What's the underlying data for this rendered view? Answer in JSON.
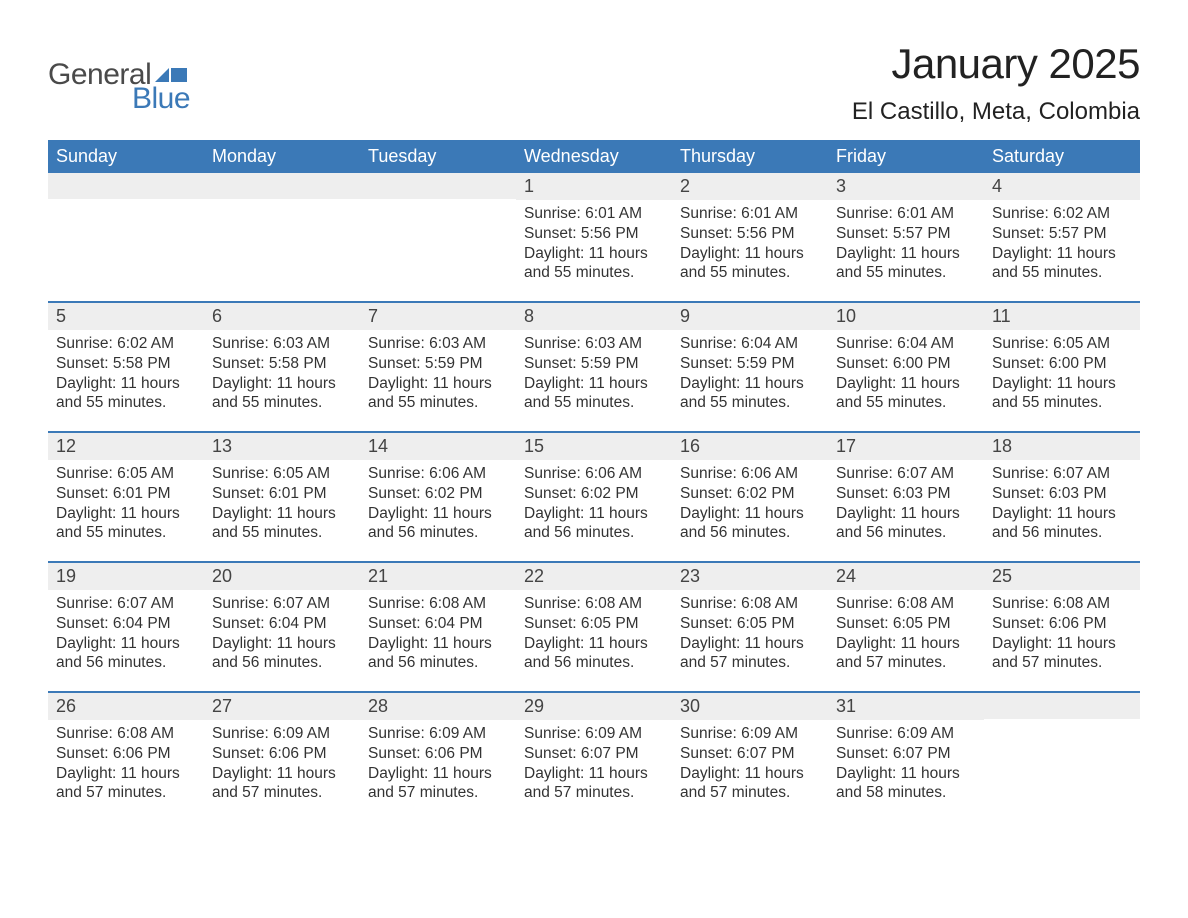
{
  "logo": {
    "text1": "General",
    "text2": "Blue",
    "flag_color": "#3b79b7"
  },
  "header": {
    "month_title": "January 2025",
    "location": "El Castillo, Meta, Colombia"
  },
  "colors": {
    "header_bg": "#3b79b7",
    "header_text": "#ffffff",
    "daynum_bg": "#eeeeee",
    "body_bg": "#ffffff",
    "text": "#333333"
  },
  "calendar": {
    "type": "table",
    "day_names": [
      "Sunday",
      "Monday",
      "Tuesday",
      "Wednesday",
      "Thursday",
      "Friday",
      "Saturday"
    ],
    "weeks": [
      [
        {
          "day": "",
          "sunrise": "",
          "sunset": "",
          "daylight": ""
        },
        {
          "day": "",
          "sunrise": "",
          "sunset": "",
          "daylight": ""
        },
        {
          "day": "",
          "sunrise": "",
          "sunset": "",
          "daylight": ""
        },
        {
          "day": "1",
          "sunrise": "Sunrise: 6:01 AM",
          "sunset": "Sunset: 5:56 PM",
          "daylight": "Daylight: 11 hours and 55 minutes."
        },
        {
          "day": "2",
          "sunrise": "Sunrise: 6:01 AM",
          "sunset": "Sunset: 5:56 PM",
          "daylight": "Daylight: 11 hours and 55 minutes."
        },
        {
          "day": "3",
          "sunrise": "Sunrise: 6:01 AM",
          "sunset": "Sunset: 5:57 PM",
          "daylight": "Daylight: 11 hours and 55 minutes."
        },
        {
          "day": "4",
          "sunrise": "Sunrise: 6:02 AM",
          "sunset": "Sunset: 5:57 PM",
          "daylight": "Daylight: 11 hours and 55 minutes."
        }
      ],
      [
        {
          "day": "5",
          "sunrise": "Sunrise: 6:02 AM",
          "sunset": "Sunset: 5:58 PM",
          "daylight": "Daylight: 11 hours and 55 minutes."
        },
        {
          "day": "6",
          "sunrise": "Sunrise: 6:03 AM",
          "sunset": "Sunset: 5:58 PM",
          "daylight": "Daylight: 11 hours and 55 minutes."
        },
        {
          "day": "7",
          "sunrise": "Sunrise: 6:03 AM",
          "sunset": "Sunset: 5:59 PM",
          "daylight": "Daylight: 11 hours and 55 minutes."
        },
        {
          "day": "8",
          "sunrise": "Sunrise: 6:03 AM",
          "sunset": "Sunset: 5:59 PM",
          "daylight": "Daylight: 11 hours and 55 minutes."
        },
        {
          "day": "9",
          "sunrise": "Sunrise: 6:04 AM",
          "sunset": "Sunset: 5:59 PM",
          "daylight": "Daylight: 11 hours and 55 minutes."
        },
        {
          "day": "10",
          "sunrise": "Sunrise: 6:04 AM",
          "sunset": "Sunset: 6:00 PM",
          "daylight": "Daylight: 11 hours and 55 minutes."
        },
        {
          "day": "11",
          "sunrise": "Sunrise: 6:05 AM",
          "sunset": "Sunset: 6:00 PM",
          "daylight": "Daylight: 11 hours and 55 minutes."
        }
      ],
      [
        {
          "day": "12",
          "sunrise": "Sunrise: 6:05 AM",
          "sunset": "Sunset: 6:01 PM",
          "daylight": "Daylight: 11 hours and 55 minutes."
        },
        {
          "day": "13",
          "sunrise": "Sunrise: 6:05 AM",
          "sunset": "Sunset: 6:01 PM",
          "daylight": "Daylight: 11 hours and 55 minutes."
        },
        {
          "day": "14",
          "sunrise": "Sunrise: 6:06 AM",
          "sunset": "Sunset: 6:02 PM",
          "daylight": "Daylight: 11 hours and 56 minutes."
        },
        {
          "day": "15",
          "sunrise": "Sunrise: 6:06 AM",
          "sunset": "Sunset: 6:02 PM",
          "daylight": "Daylight: 11 hours and 56 minutes."
        },
        {
          "day": "16",
          "sunrise": "Sunrise: 6:06 AM",
          "sunset": "Sunset: 6:02 PM",
          "daylight": "Daylight: 11 hours and 56 minutes."
        },
        {
          "day": "17",
          "sunrise": "Sunrise: 6:07 AM",
          "sunset": "Sunset: 6:03 PM",
          "daylight": "Daylight: 11 hours and 56 minutes."
        },
        {
          "day": "18",
          "sunrise": "Sunrise: 6:07 AM",
          "sunset": "Sunset: 6:03 PM",
          "daylight": "Daylight: 11 hours and 56 minutes."
        }
      ],
      [
        {
          "day": "19",
          "sunrise": "Sunrise: 6:07 AM",
          "sunset": "Sunset: 6:04 PM",
          "daylight": "Daylight: 11 hours and 56 minutes."
        },
        {
          "day": "20",
          "sunrise": "Sunrise: 6:07 AM",
          "sunset": "Sunset: 6:04 PM",
          "daylight": "Daylight: 11 hours and 56 minutes."
        },
        {
          "day": "21",
          "sunrise": "Sunrise: 6:08 AM",
          "sunset": "Sunset: 6:04 PM",
          "daylight": "Daylight: 11 hours and 56 minutes."
        },
        {
          "day": "22",
          "sunrise": "Sunrise: 6:08 AM",
          "sunset": "Sunset: 6:05 PM",
          "daylight": "Daylight: 11 hours and 56 minutes."
        },
        {
          "day": "23",
          "sunrise": "Sunrise: 6:08 AM",
          "sunset": "Sunset: 6:05 PM",
          "daylight": "Daylight: 11 hours and 57 minutes."
        },
        {
          "day": "24",
          "sunrise": "Sunrise: 6:08 AM",
          "sunset": "Sunset: 6:05 PM",
          "daylight": "Daylight: 11 hours and 57 minutes."
        },
        {
          "day": "25",
          "sunrise": "Sunrise: 6:08 AM",
          "sunset": "Sunset: 6:06 PM",
          "daylight": "Daylight: 11 hours and 57 minutes."
        }
      ],
      [
        {
          "day": "26",
          "sunrise": "Sunrise: 6:08 AM",
          "sunset": "Sunset: 6:06 PM",
          "daylight": "Daylight: 11 hours and 57 minutes."
        },
        {
          "day": "27",
          "sunrise": "Sunrise: 6:09 AM",
          "sunset": "Sunset: 6:06 PM",
          "daylight": "Daylight: 11 hours and 57 minutes."
        },
        {
          "day": "28",
          "sunrise": "Sunrise: 6:09 AM",
          "sunset": "Sunset: 6:06 PM",
          "daylight": "Daylight: 11 hours and 57 minutes."
        },
        {
          "day": "29",
          "sunrise": "Sunrise: 6:09 AM",
          "sunset": "Sunset: 6:07 PM",
          "daylight": "Daylight: 11 hours and 57 minutes."
        },
        {
          "day": "30",
          "sunrise": "Sunrise: 6:09 AM",
          "sunset": "Sunset: 6:07 PM",
          "daylight": "Daylight: 11 hours and 57 minutes."
        },
        {
          "day": "31",
          "sunrise": "Sunrise: 6:09 AM",
          "sunset": "Sunset: 6:07 PM",
          "daylight": "Daylight: 11 hours and 58 minutes."
        },
        {
          "day": "",
          "sunrise": "",
          "sunset": "",
          "daylight": ""
        }
      ]
    ]
  }
}
